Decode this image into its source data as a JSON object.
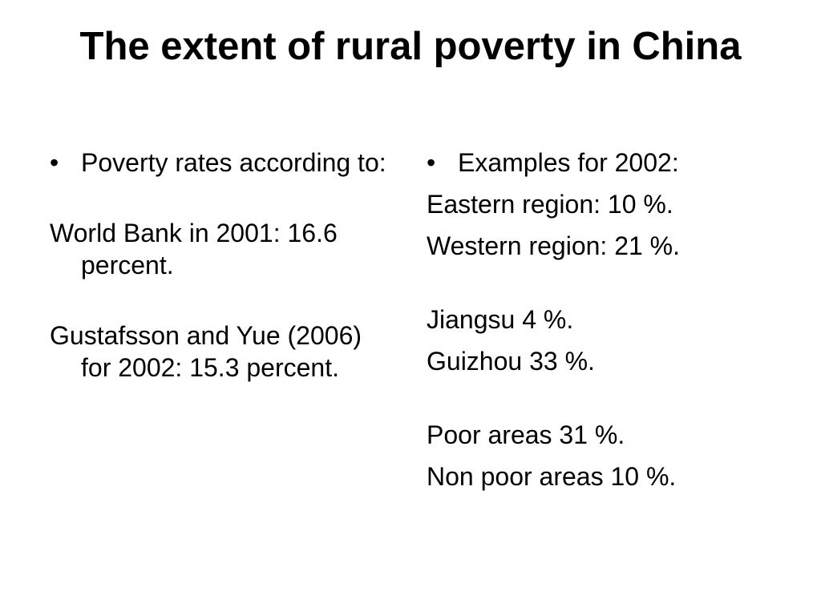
{
  "slide": {
    "title": "The extent of rural poverty in China",
    "left_column": {
      "bullet": "Poverty rates according to:",
      "paragraphs": [
        "World Bank in 2001: 16.6 percent.",
        "Gustafsson and Yue (2006) for 2002: 15.3 percent."
      ]
    },
    "right_column": {
      "bullet": "Examples for 2002:",
      "lines": [
        "Eastern region: 10 %.",
        "Western region: 21 %.",
        "Jiangsu 4 %.",
        "Guizhou 33 %.",
        "Poor areas 31 %.",
        "Non poor areas 10 %."
      ]
    },
    "bullet_glyph": "•"
  }
}
